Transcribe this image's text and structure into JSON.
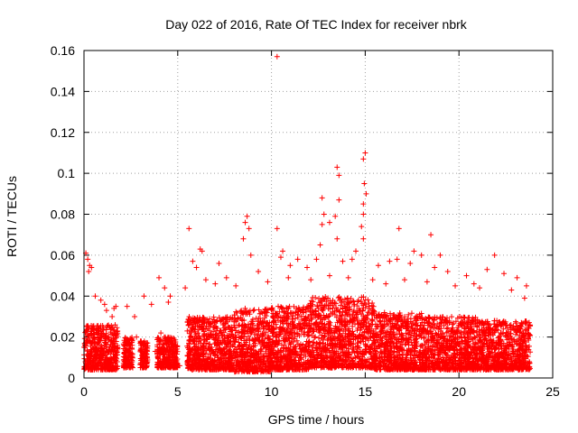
{
  "chart_data": {
    "type": "scatter",
    "title": "Day 022 of 2016, Rate Of TEC Index for receiver nbrk",
    "xlabel": "GPS time / hours",
    "ylabel": "ROTI / TECUs",
    "xlim": [
      0,
      25
    ],
    "ylim": [
      0,
      0.16
    ],
    "xticks": [
      0,
      5,
      10,
      15,
      20,
      25
    ],
    "yticks": [
      0,
      0.02,
      0.04,
      0.06,
      0.08,
      0.1,
      0.12,
      0.14,
      0.16
    ],
    "xtick_labels": [
      "0",
      "5",
      "10",
      "15",
      "20",
      "25"
    ],
    "ytick_labels": [
      "0",
      "0.02",
      "0.04",
      "0.06",
      "0.08",
      "0.1",
      "0.12",
      "0.14",
      "0.16"
    ],
    "grid": true,
    "marker": "+",
    "colors": {
      "points": "#ff0000",
      "grid": "#a0a0a0",
      "axes": "#000000"
    },
    "points": [
      [
        10.3,
        0.157
      ],
      [
        15.0,
        0.11
      ],
      [
        14.9,
        0.107
      ],
      [
        13.5,
        0.103
      ],
      [
        13.6,
        0.099
      ],
      [
        14.95,
        0.095
      ],
      [
        15.05,
        0.09
      ],
      [
        14.9,
        0.085
      ],
      [
        12.7,
        0.088
      ],
      [
        13.6,
        0.087
      ],
      [
        14.9,
        0.08
      ],
      [
        8.7,
        0.079
      ],
      [
        12.8,
        0.08
      ],
      [
        13.4,
        0.079
      ],
      [
        14.8,
        0.074
      ],
      [
        5.6,
        0.073
      ],
      [
        10.3,
        0.073
      ],
      [
        12.7,
        0.075
      ],
      [
        13.1,
        0.076
      ],
      [
        16.8,
        0.073
      ],
      [
        18.5,
        0.07
      ],
      [
        8.6,
        0.076
      ],
      [
        8.8,
        0.073
      ],
      [
        8.5,
        0.068
      ],
      [
        13.5,
        0.068
      ],
      [
        14.9,
        0.068
      ],
      [
        6.2,
        0.063
      ],
      [
        6.3,
        0.062
      ],
      [
        10.6,
        0.062
      ],
      [
        12.6,
        0.065
      ],
      [
        17.6,
        0.062
      ],
      [
        18.0,
        0.06
      ],
      [
        19.0,
        0.06
      ],
      [
        21.9,
        0.06
      ],
      [
        0.1,
        0.061
      ],
      [
        0.2,
        0.058
      ],
      [
        0.3,
        0.055
      ],
      [
        0.25,
        0.052
      ],
      [
        0.4,
        0.054
      ],
      [
        5.8,
        0.057
      ],
      [
        6.0,
        0.054
      ],
      [
        7.2,
        0.056
      ],
      [
        8.9,
        0.06
      ],
      [
        9.3,
        0.052
      ],
      [
        10.5,
        0.059
      ],
      [
        11.0,
        0.055
      ],
      [
        11.4,
        0.058
      ],
      [
        11.9,
        0.054
      ],
      [
        12.4,
        0.058
      ],
      [
        13.8,
        0.057
      ],
      [
        14.3,
        0.058
      ],
      [
        14.5,
        0.062
      ],
      [
        15.7,
        0.055
      ],
      [
        16.3,
        0.057
      ],
      [
        16.7,
        0.058
      ],
      [
        17.4,
        0.056
      ],
      [
        18.7,
        0.054
      ],
      [
        19.4,
        0.052
      ],
      [
        20.4,
        0.05
      ],
      [
        21.5,
        0.053
      ],
      [
        22.4,
        0.051
      ],
      [
        23.1,
        0.049
      ],
      [
        23.6,
        0.045
      ],
      [
        4.0,
        0.049
      ],
      [
        4.3,
        0.044
      ],
      [
        3.2,
        0.04
      ],
      [
        3.6,
        0.036
      ],
      [
        2.3,
        0.035
      ],
      [
        1.6,
        0.034
      ],
      [
        1.5,
        0.03
      ],
      [
        1.7,
        0.035
      ],
      [
        5.4,
        0.044
      ],
      [
        4.6,
        0.04
      ],
      [
        4.5,
        0.037
      ],
      [
        2.7,
        0.03
      ],
      [
        0.6,
        0.04
      ],
      [
        0.9,
        0.038
      ],
      [
        1.1,
        0.036
      ],
      [
        1.2,
        0.033
      ],
      [
        6.5,
        0.048
      ],
      [
        7.0,
        0.046
      ],
      [
        7.6,
        0.049
      ],
      [
        8.1,
        0.045
      ],
      [
        9.8,
        0.047
      ],
      [
        10.9,
        0.049
      ],
      [
        12.1,
        0.048
      ],
      [
        13.1,
        0.05
      ],
      [
        14.1,
        0.049
      ],
      [
        15.4,
        0.048
      ],
      [
        16.1,
        0.046
      ],
      [
        17.1,
        0.048
      ],
      [
        18.3,
        0.047
      ],
      [
        19.8,
        0.045
      ],
      [
        20.8,
        0.046
      ],
      [
        21.1,
        0.044
      ],
      [
        22.8,
        0.043
      ],
      [
        23.5,
        0.039
      ],
      [
        3.0,
        0.017
      ],
      [
        3.3,
        0.015
      ],
      [
        3.1,
        0.011
      ],
      [
        2.2,
        0.012
      ],
      [
        2.5,
        0.009
      ],
      [
        2.4,
        0.007
      ],
      [
        4.1,
        0.022
      ],
      [
        4.4,
        0.017
      ],
      [
        4.7,
        0.012
      ],
      [
        4.9,
        0.01
      ],
      [
        5.1,
        0.006
      ],
      [
        3.8,
        0.013
      ],
      [
        4.2,
        0.018
      ],
      [
        2.8,
        0.02
      ]
    ],
    "bands": [
      {
        "x": [
          0.0,
          1.8
        ],
        "y": [
          0.004,
          0.026
        ]
      },
      {
        "x": [
          2.1,
          2.6
        ],
        "y": [
          0.005,
          0.02
        ]
      },
      {
        "x": [
          3.0,
          3.4
        ],
        "y": [
          0.005,
          0.018
        ]
      },
      {
        "x": [
          3.9,
          5.0
        ],
        "y": [
          0.005,
          0.02
        ]
      },
      {
        "x": [
          5.5,
          8.0
        ],
        "y": [
          0.004,
          0.03
        ]
      },
      {
        "x": [
          8.0,
          10.0
        ],
        "y": [
          0.003,
          0.034
        ]
      },
      {
        "x": [
          10.0,
          12.0
        ],
        "y": [
          0.004,
          0.035
        ]
      },
      {
        "x": [
          12.0,
          15.5
        ],
        "y": [
          0.005,
          0.04
        ]
      },
      {
        "x": [
          15.5,
          18.0
        ],
        "y": [
          0.004,
          0.032
        ]
      },
      {
        "x": [
          18.0,
          21.0
        ],
        "y": [
          0.004,
          0.03
        ]
      },
      {
        "x": [
          21.0,
          23.8
        ],
        "y": [
          0.004,
          0.028
        ]
      }
    ]
  }
}
